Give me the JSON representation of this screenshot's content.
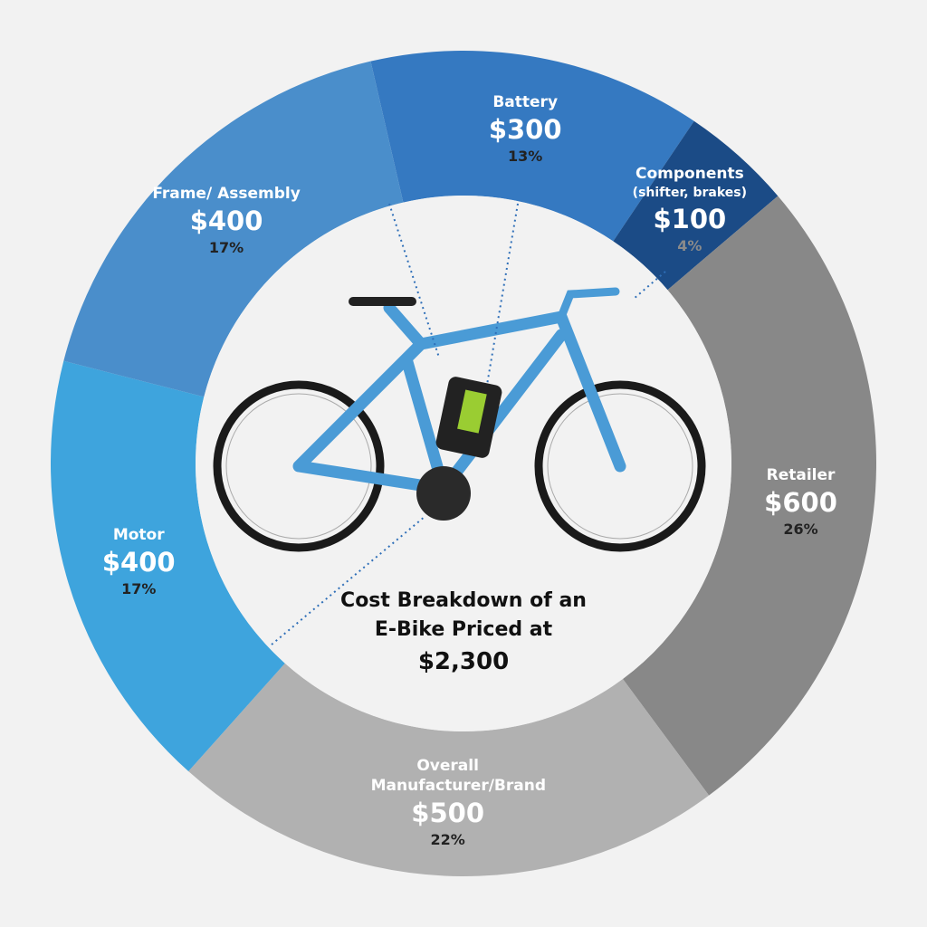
{
  "chart_data": {
    "type": "donut",
    "title": "Cost Breakdown of an E-Bike Priced at",
    "total": 2300,
    "total_label": "$2,300",
    "categories": [
      "Battery",
      "Components",
      "Retailer",
      "Overall Manufacturer/Brand",
      "Motor",
      "Frame/ Assembly"
    ],
    "sublabels": [
      null,
      "(shifter, brakes)",
      null,
      null,
      null,
      null
    ],
    "values": [
      300,
      100,
      600,
      500,
      400,
      400
    ],
    "value_labels": [
      "$300",
      "$100",
      "$600",
      "$500",
      "$400",
      "$400"
    ],
    "percentages": [
      13,
      4,
      26,
      22,
      17,
      17
    ],
    "percentage_labels": [
      "13%",
      "4%",
      "26%",
      "22%",
      "17%",
      "17%"
    ],
    "colors": [
      "#3579c1",
      "#1b4b86",
      "#888888",
      "#b1b1b1",
      "#3ea4dd",
      "#4a8ecb"
    ],
    "percentage_colors": [
      "#222222",
      "#8a8a8a",
      "#222222",
      "#222222",
      "#222222",
      "#222222"
    ]
  }
}
